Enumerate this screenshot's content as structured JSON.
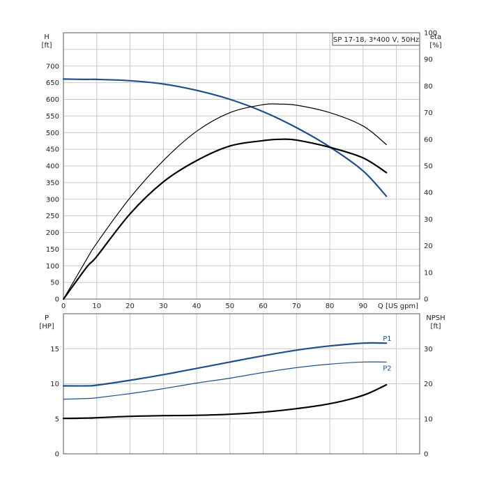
{
  "chart_data": [
    {
      "type": "line",
      "title": "SP 17-18, 3*400 V, 50Hz",
      "xlabel": "Q [US gpm]",
      "x_ticks": [
        0,
        10,
        20,
        30,
        40,
        50,
        60,
        70,
        80,
        90
      ],
      "xlim": [
        0,
        107
      ],
      "left_axis": {
        "label_top": "H",
        "label_unit": "[ft]",
        "ylim": [
          0,
          800
        ],
        "ticks": [
          0,
          50,
          100,
          150,
          200,
          250,
          300,
          350,
          400,
          450,
          500,
          550,
          600,
          650,
          700
        ]
      },
      "right_axis": {
        "label_top": "eta",
        "label_unit": "[%]",
        "ylim": [
          0,
          100
        ],
        "ticks": [
          0,
          10,
          20,
          30,
          40,
          50,
          60,
          70,
          80,
          90,
          100
        ]
      },
      "grid": true,
      "series": [
        {
          "axis": "left",
          "color": "#1f4e8c",
          "width": 2.2,
          "x": [
            0,
            7,
            10,
            20,
            30,
            40,
            50,
            60,
            70,
            80,
            90,
            97
          ],
          "y": [
            661,
            660,
            660,
            656,
            646,
            627,
            600,
            563,
            515,
            457,
            385,
            309
          ]
        },
        {
          "axis": "right",
          "color": "#000000",
          "width": 1.2,
          "x": [
            0,
            7,
            10,
            20,
            30,
            40,
            50,
            60,
            65,
            70,
            80,
            90,
            97
          ],
          "y": [
            0,
            15,
            21,
            38,
            52,
            63,
            70,
            73,
            73.2,
            72.8,
            70,
            65,
            58
          ]
        },
        {
          "axis": "right",
          "color": "#000000",
          "width": 2.2,
          "x": [
            0,
            7,
            10,
            20,
            30,
            40,
            50,
            60,
            65,
            70,
            80,
            90,
            97
          ],
          "y": [
            0,
            12,
            16,
            32,
            44,
            52,
            57.5,
            59.5,
            60,
            59.7,
            57,
            53,
            47.5
          ]
        }
      ]
    },
    {
      "type": "line",
      "xlim": [
        0,
        107
      ],
      "x_ticks": [
        0,
        10,
        20,
        30,
        40,
        50,
        60,
        70,
        80,
        90
      ],
      "left_axis": {
        "label_top": "P",
        "label_unit": "[HP]",
        "ylim": [
          0,
          20
        ],
        "ticks": [
          0,
          5,
          10,
          15
        ]
      },
      "right_axis": {
        "label_top": "NPSH",
        "label_unit": "[ft]",
        "ylim": [
          0,
          40
        ],
        "ticks": [
          0,
          10,
          20,
          30
        ]
      },
      "grid": true,
      "series": [
        {
          "name": "P1",
          "axis": "left",
          "color": "#1f4e8c",
          "width": 2.2,
          "x": [
            0,
            7,
            10,
            20,
            30,
            40,
            50,
            60,
            70,
            80,
            90,
            97
          ],
          "y": [
            9.7,
            9.7,
            9.8,
            10.5,
            11.3,
            12.2,
            13.1,
            14.0,
            14.8,
            15.4,
            15.8,
            15.8
          ]
        },
        {
          "name": "P2",
          "axis": "left",
          "color": "#1f4e8c",
          "width": 1.2,
          "x": [
            0,
            7,
            10,
            20,
            30,
            40,
            50,
            60,
            70,
            80,
            90,
            97
          ],
          "y": [
            7.8,
            7.9,
            8.0,
            8.6,
            9.3,
            10.1,
            10.8,
            11.6,
            12.3,
            12.8,
            13.1,
            13.1
          ]
        },
        {
          "axis": "right",
          "color": "#000000",
          "width": 2.2,
          "x": [
            0,
            7,
            10,
            20,
            30,
            40,
            50,
            60,
            70,
            80,
            90,
            97
          ],
          "y": [
            10.1,
            10.2,
            10.3,
            10.7,
            10.9,
            11.0,
            11.3,
            11.9,
            12.9,
            14.3,
            16.7,
            19.7
          ]
        }
      ]
    }
  ]
}
